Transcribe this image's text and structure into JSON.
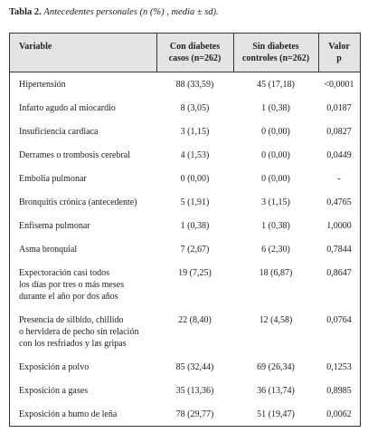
{
  "caption": {
    "label": "Tabla 2.",
    "text": "Antecedentes personales (n (%) , media ± sd)."
  },
  "table": {
    "header": [
      [
        "Variable"
      ],
      [
        "Con diabetes",
        "casos (n=262)"
      ],
      [
        "Sin diabetes",
        "controles  (n=262)"
      ],
      [
        "Valor",
        "p"
      ]
    ],
    "rows": [
      [
        [
          "Hipertensión"
        ],
        "88 (33,59)",
        "45 (17,18)",
        "<0,0001"
      ],
      [
        [
          "Infarto agudo al miocardio"
        ],
        "8 (3,05)",
        "1 (0,38)",
        "0,0187"
      ],
      [
        [
          "Insuficiencia cardiaca"
        ],
        "3 (1,15)",
        "0 (0,00)",
        "0,0827"
      ],
      [
        [
          "Derrames o trombosis cerebral"
        ],
        "4 (1,53)",
        "0 (0,00)",
        "0,0449"
      ],
      [
        [
          "Embolia pulmonar"
        ],
        "0 (0,00)",
        "0 (0,00)",
        "-"
      ],
      [
        [
          "Bronquitis crónica (antecedente)"
        ],
        "5 (1,91)",
        "3 (1,15)",
        "0,4765"
      ],
      [
        [
          "Enfisema pulmonar"
        ],
        "1 (0,38)",
        "1 (0,38)",
        "1,0000"
      ],
      [
        [
          "Asma bronquial"
        ],
        "7 (2,67)",
        "6 (2,30)",
        "0,7844"
      ],
      [
        [
          "Expectoración casi todos",
          "los días por tres o más meses",
          "durante el año por dos años"
        ],
        "19 (7,25)",
        "18 (6,87)",
        "0,8647"
      ],
      [
        [
          "Presencia de silbido, chillido",
          "o hervidera de pecho sin relación",
          "con los resfriados y las gripas"
        ],
        "22 (8,40)",
        "12 (4,58)",
        "0,0764"
      ],
      [
        [
          "Exposición a polvo"
        ],
        "85 (32,44)",
        "69 (26,34)",
        "0,1253"
      ],
      [
        [
          "Exposición a gases"
        ],
        "35 (13,36)",
        "36 (13,74)",
        "0,8985"
      ],
      [
        [
          "Exposición a humo de leña"
        ],
        "78 (29,77)",
        "51 (19,47)",
        "0,0062"
      ]
    ]
  }
}
